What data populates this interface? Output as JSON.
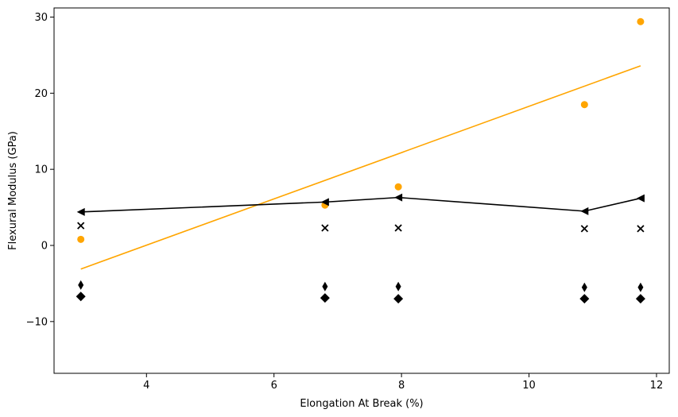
{
  "chart_data": {
    "type": "scatter",
    "title": "",
    "xlabel": "Elongation At Break (%)",
    "ylabel": "Flexural Modulus (GPa)",
    "xlim": [
      2.55,
      12.2
    ],
    "ylim": [
      -16.8,
      31.2
    ],
    "xticks": [
      4,
      6,
      8,
      10,
      12
    ],
    "yticks": [
      -10,
      0,
      10,
      20,
      30
    ],
    "xtick_labels": [
      "4",
      "6",
      "8",
      "10",
      "12"
    ],
    "ytick_labels": [
      "−10",
      "0",
      "10",
      "20",
      "30"
    ],
    "grid": false,
    "legend": "none",
    "series": [
      {
        "marker": "circle",
        "color": "#ffa500",
        "line": false,
        "x": [
          2.97,
          6.8,
          7.95,
          10.87,
          11.75
        ],
        "y": [
          0.8,
          5.3,
          7.7,
          18.5,
          29.4
        ]
      },
      {
        "marker": "line",
        "color": "#ffa500",
        "line": true,
        "x": [
          2.97,
          11.75
        ],
        "y": [
          -3.1,
          23.6
        ]
      },
      {
        "marker": "triangle-left",
        "color": "#000000",
        "line": true,
        "x": [
          2.97,
          6.8,
          7.95,
          10.87,
          11.75
        ],
        "y": [
          4.4,
          5.7,
          6.3,
          4.5,
          6.2
        ]
      },
      {
        "marker": "x",
        "color": "#000000",
        "line": false,
        "x": [
          2.97,
          6.8,
          7.95,
          10.87,
          11.75
        ],
        "y": [
          2.6,
          2.3,
          2.3,
          2.2,
          2.2
        ]
      },
      {
        "marker": "thin-diamond",
        "color": "#000000",
        "line": false,
        "x": [
          2.97,
          6.8,
          7.95,
          10.87,
          11.75
        ],
        "y": [
          -5.2,
          -5.4,
          -5.4,
          -5.5,
          -5.5
        ]
      },
      {
        "marker": "diamond",
        "color": "#000000",
        "line": false,
        "x": [
          2.97,
          6.8,
          7.95,
          10.87,
          11.75
        ],
        "y": [
          -6.7,
          -6.9,
          -7.0,
          -7.0,
          -7.0
        ]
      }
    ]
  }
}
